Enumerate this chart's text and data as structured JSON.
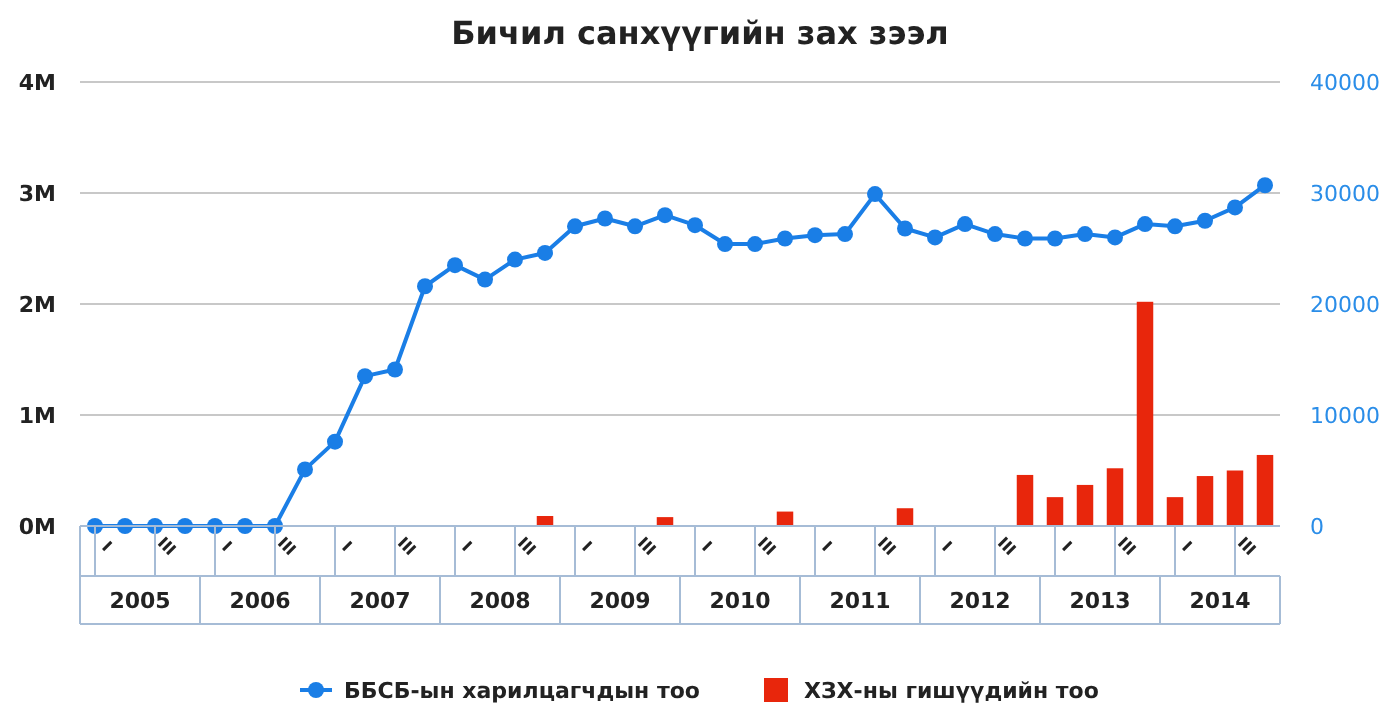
{
  "chart_data": {
    "type": "bar",
    "title": "Бичил санхүүгийн зах зээл",
    "categories": [
      "I",
      null,
      "III",
      null,
      "I",
      null,
      "III",
      null,
      "I",
      null,
      "III",
      null,
      "I",
      null,
      "III",
      null,
      "I",
      null,
      "III",
      null,
      "I",
      null,
      "III",
      null,
      "I",
      null,
      "III",
      null,
      "I",
      null,
      "III",
      null,
      "I",
      null,
      "III",
      null,
      "I",
      null,
      "III",
      null
    ],
    "annotations": [
      "2005",
      "2006",
      "2007",
      "2008",
      "2009",
      "2010",
      "2011",
      "2012",
      "2013",
      "2014"
    ],
    "series": [
      {
        "name": "ББСБ-ын харилцагчдын тоо",
        "type": "line",
        "color": "#1a7ee6",
        "marker": "circle",
        "values": [
          0,
          0,
          0,
          0,
          0,
          0,
          0,
          0.51,
          0.76,
          1.35,
          1.41,
          2.16,
          2.35,
          2.22,
          2.4,
          2.46,
          2.7,
          2.77,
          2.7,
          2.8,
          2.71,
          2.54,
          2.54,
          2.59,
          2.62,
          2.63,
          2.99,
          2.68,
          2.6,
          2.72,
          2.63,
          2.59,
          2.59,
          2.63,
          2.6,
          2.72,
          2.7,
          2.75,
          2.87,
          3.07
        ]
      },
      {
        "name": "ХЗХ-ны гишүүдийн тоо",
        "axis": "y2",
        "color": "#e8260c",
        "values": [
          null,
          null,
          null,
          null,
          null,
          null,
          null,
          null,
          null,
          null,
          null,
          null,
          null,
          null,
          null,
          900,
          null,
          null,
          null,
          800,
          null,
          null,
          null,
          1300,
          null,
          null,
          null,
          1600,
          null,
          null,
          null,
          4600,
          2600,
          3700,
          5200,
          20200,
          2600,
          4500,
          5000,
          6400
        ]
      }
    ],
    "ylim": [
      0,
      4
    ],
    "yticks": [
      {
        "value": 0,
        "label": "0M"
      },
      {
        "value": 1,
        "label": "1M"
      },
      {
        "value": 2,
        "label": "2M"
      },
      {
        "value": 3,
        "label": "3M"
      },
      {
        "value": 4,
        "label": "4M"
      }
    ],
    "y2lim": [
      0,
      40000
    ],
    "y2ticks": [
      0,
      10000,
      20000,
      30000,
      40000
    ],
    "grid": "y",
    "legend": "bottom"
  }
}
